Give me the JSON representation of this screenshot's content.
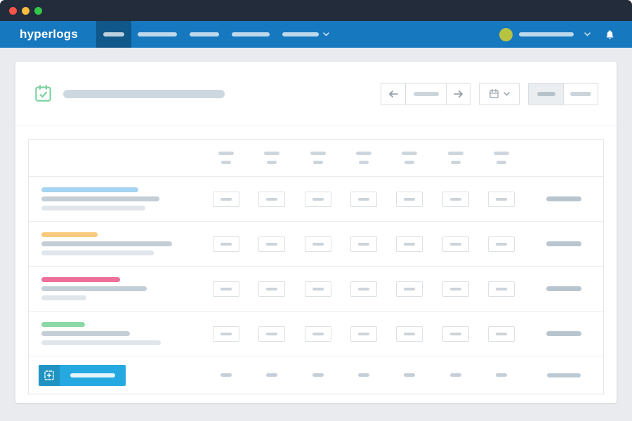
{
  "window": {
    "titlebar_color": "#222c3a",
    "controls": [
      {
        "name": "close",
        "color": "#fb5449"
      },
      {
        "name": "minimize",
        "color": "#fdbc40"
      },
      {
        "name": "maximize",
        "color": "#34c84a"
      }
    ]
  },
  "navbar": {
    "background": "#1678be",
    "logo_text": "hyperlogs",
    "items": [
      {
        "active": true,
        "has_dropdown": false
      },
      {
        "active": false,
        "has_dropdown": false
      },
      {
        "active": false,
        "has_dropdown": false
      },
      {
        "active": false,
        "has_dropdown": false
      },
      {
        "active": false,
        "has_dropdown": true
      }
    ],
    "user_menu": {
      "avatar_color": "#b8c441",
      "has_dropdown": true
    },
    "icons": [
      "chevron-down-icon",
      "bell-icon"
    ]
  },
  "header": {
    "title_icon": "calendar-check-icon",
    "title_icon_color": "#7ed3a0",
    "pager_buttons": [
      "prev-week",
      "current-range",
      "next-week"
    ],
    "date_picker_icon": "calendar-icon",
    "view_toggle": {
      "options": 2,
      "selected_index": 0
    }
  },
  "table": {
    "day_columns": 7,
    "rows": [
      {
        "accent_color": "#a5d3f3",
        "accent_width": 138,
        "line1_width": 168,
        "line2_width": 148
      },
      {
        "accent_color": "#f9ca7d",
        "accent_width": 80,
        "line1_width": 186,
        "line2_width": 160
      },
      {
        "accent_color": "#ee6f97",
        "accent_width": 112,
        "line1_width": 150,
        "line2_width": 64
      },
      {
        "accent_color": "#8cd8a6",
        "accent_width": 62,
        "line1_width": 126,
        "line2_width": 170
      }
    ],
    "footer": {
      "add_button_color": "#25a9e0",
      "add_icon": "add-entry-icon"
    }
  }
}
